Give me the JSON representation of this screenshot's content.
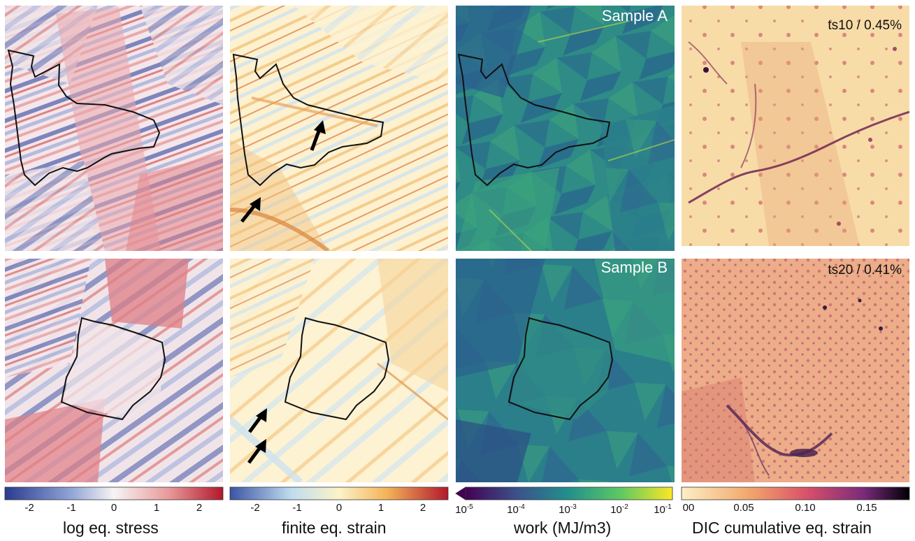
{
  "panels": {
    "sample_a_label": "Sample A",
    "sample_b_label": "Sample B",
    "dic_top_label": "ts10 / 0.45%",
    "dic_bottom_label": "ts20 / 0.41%"
  },
  "colorbars": {
    "stress": {
      "label": "log eq. stress",
      "ticks": [
        "-2",
        "-1",
        "0",
        "1",
        "2"
      ],
      "colors": [
        "#2a3b8f",
        "#8fa3d6",
        "#f5f2f2",
        "#e89a9a",
        "#b2182b"
      ]
    },
    "strain": {
      "label": "finite eq. strain",
      "ticks": [
        "-2",
        "-1",
        "0",
        "1",
        "2"
      ],
      "colors": [
        "#3b54a4",
        "#bfdcef",
        "#fbf3c8",
        "#f4b35a",
        "#b2182b"
      ]
    },
    "work": {
      "label": "work (MJ/m3)",
      "tick_bases": [
        "10",
        "10",
        "10",
        "10",
        "10"
      ],
      "tick_exps": [
        "-5",
        "-4",
        "-3",
        "-2",
        "-1"
      ],
      "colors": [
        "#440154",
        "#3b528b",
        "#21918c",
        "#5ec962",
        "#fde725"
      ]
    },
    "dic": {
      "label": "DIC cumulative eq. strain",
      "ticks": [
        "00",
        "0.05",
        "0.10",
        "0.15"
      ],
      "colors": [
        "#fcefc4",
        "#f2a66b",
        "#d9506a",
        "#7a2a7a",
        "#000004"
      ]
    }
  },
  "map_colors": {
    "stress_bg": "#f3e3e6",
    "strain_bg": "#fdf0cc",
    "work_bg": "#2f8c86",
    "dic_top_bg": "#f8dba8",
    "dic_bottom_bg": "#e9a27a"
  }
}
